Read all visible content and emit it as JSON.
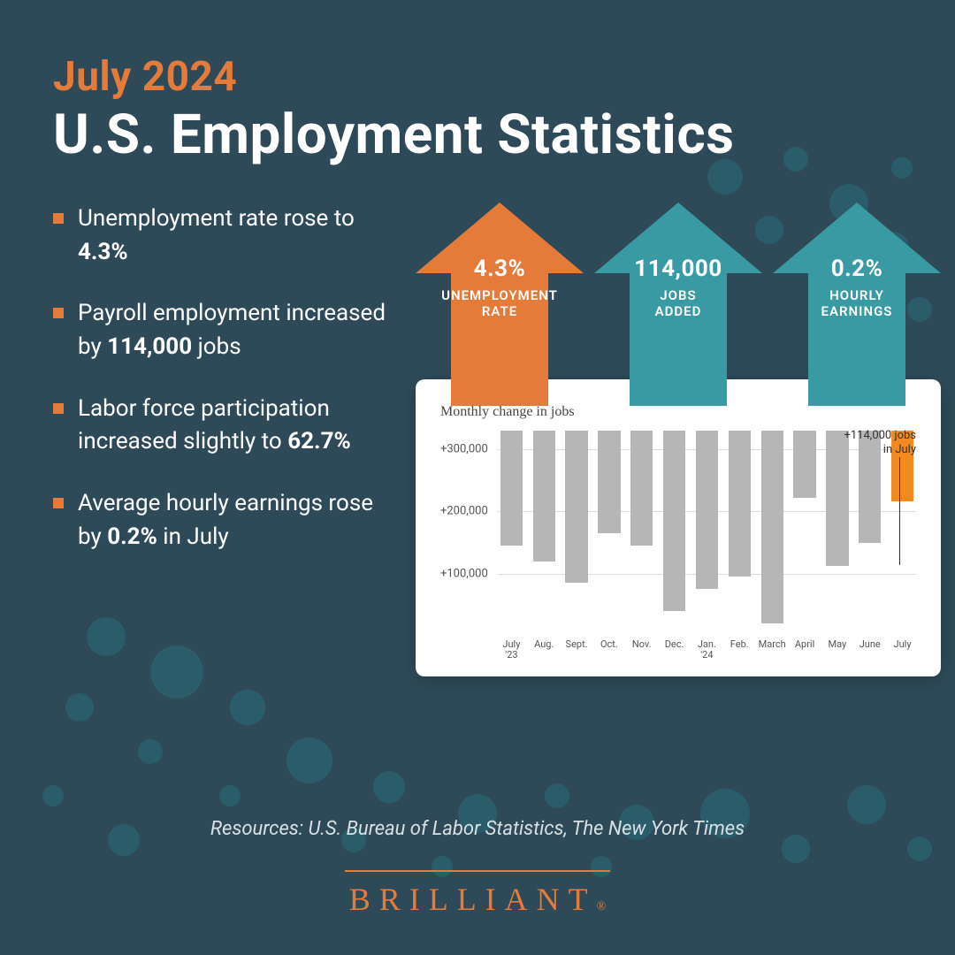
{
  "colors": {
    "background": "#2e4a58",
    "accent_orange": "#e57b3a",
    "accent_teal": "#3a9aa3",
    "text_light": "#ffffff",
    "card_bg": "#ffffff",
    "bar_default": "#b6b6b6",
    "bar_highlight": "#f08a21",
    "grid": "#dddddd",
    "dot": "#296b7a"
  },
  "heading": {
    "small": "July 2024",
    "large": "U.S. Employment Statistics"
  },
  "bullets": [
    {
      "pre": "Unemployment rate rose to ",
      "bold": "4.3%",
      "post": ""
    },
    {
      "pre": "Payroll employment increased by ",
      "bold": "114,000",
      "post": " jobs"
    },
    {
      "pre": "Labor force participation increased slightly to ",
      "bold": "62.7%",
      "post": ""
    },
    {
      "pre": "Average hourly earnings rose by ",
      "bold": "0.2%",
      "post": " in July"
    }
  ],
  "arrows": [
    {
      "value": "4.3%",
      "label": "UNEMPLOYMENT RATE",
      "color": "#e57b3a"
    },
    {
      "value": "114,000",
      "label": "JOBS ADDED",
      "color": "#3a9aa3"
    },
    {
      "value": "0.2%",
      "label": "HOURLY EARNINGS",
      "color": "#3a9aa3"
    }
  ],
  "chart": {
    "title": "Monthly change in jobs",
    "y_ticks": [
      {
        "value": 300000,
        "label": "+300,000"
      },
      {
        "value": 200000,
        "label": "+200,000"
      },
      {
        "value": 100000,
        "label": "+100,000"
      }
    ],
    "y_max": 330000,
    "categories": [
      "July '23",
      "Aug.",
      "Sept.",
      "Oct.",
      "Nov.",
      "Dec.",
      "Jan. '24",
      "Feb.",
      "March",
      "April",
      "May",
      "June",
      "July"
    ],
    "values": [
      185000,
      210000,
      245000,
      165000,
      185000,
      290000,
      255000,
      235000,
      310000,
      108000,
      218000,
      180000,
      114000
    ],
    "highlight_index": 12,
    "annotation": {
      "line1": "+114,000 jobs",
      "line2": "in July"
    }
  },
  "resources": "Resources: U.S. Bureau of Labor Statistics, The New York Times",
  "brand": "BRILLIANT"
}
